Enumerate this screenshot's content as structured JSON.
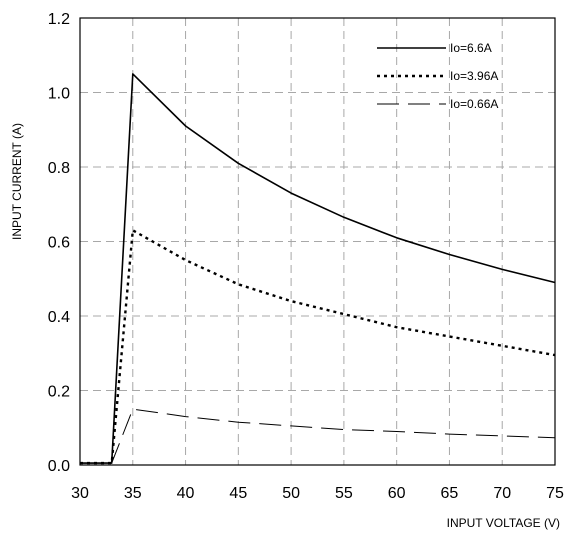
{
  "chart_data": {
    "type": "line",
    "title": "",
    "xlabel": "INPUT VOLTAGE (V)",
    "ylabel": "INPUT CURRENT (A)",
    "xlim": [
      30,
      75
    ],
    "ylim": [
      0,
      1.2
    ],
    "x_ticks": [
      "30",
      "35",
      "40",
      "45",
      "50",
      "55",
      "60",
      "65",
      "70",
      "75"
    ],
    "y_ticks": [
      "0.0",
      "0.2",
      "0.4",
      "0.6",
      "0.8",
      "1.0",
      "1.2"
    ],
    "grid": true,
    "legend_position": "top-right",
    "series": [
      {
        "name": "Io=6.6A",
        "line_style": "solid",
        "color": "#000000",
        "x": [
          30,
          33,
          35,
          40,
          45,
          50,
          55,
          60,
          65,
          70,
          75
        ],
        "y": [
          0.005,
          0.005,
          1.05,
          0.91,
          0.81,
          0.73,
          0.665,
          0.61,
          0.565,
          0.525,
          0.49
        ]
      },
      {
        "name": "Io=3.96A",
        "line_style": "dotted",
        "color": "#000000",
        "x": [
          30,
          33,
          35,
          40,
          45,
          50,
          55,
          60,
          65,
          70,
          75
        ],
        "y": [
          0.005,
          0.005,
          0.63,
          0.55,
          0.485,
          0.44,
          0.405,
          0.37,
          0.345,
          0.32,
          0.295
        ]
      },
      {
        "name": "Io=0.66A",
        "line_style": "long-dash",
        "color": "#000000",
        "x": [
          30,
          33,
          35,
          40,
          45,
          50,
          55,
          60,
          65,
          70,
          75
        ],
        "y": [
          0.005,
          0.005,
          0.15,
          0.13,
          0.115,
          0.105,
          0.095,
          0.09,
          0.083,
          0.078,
          0.073
        ]
      }
    ]
  }
}
